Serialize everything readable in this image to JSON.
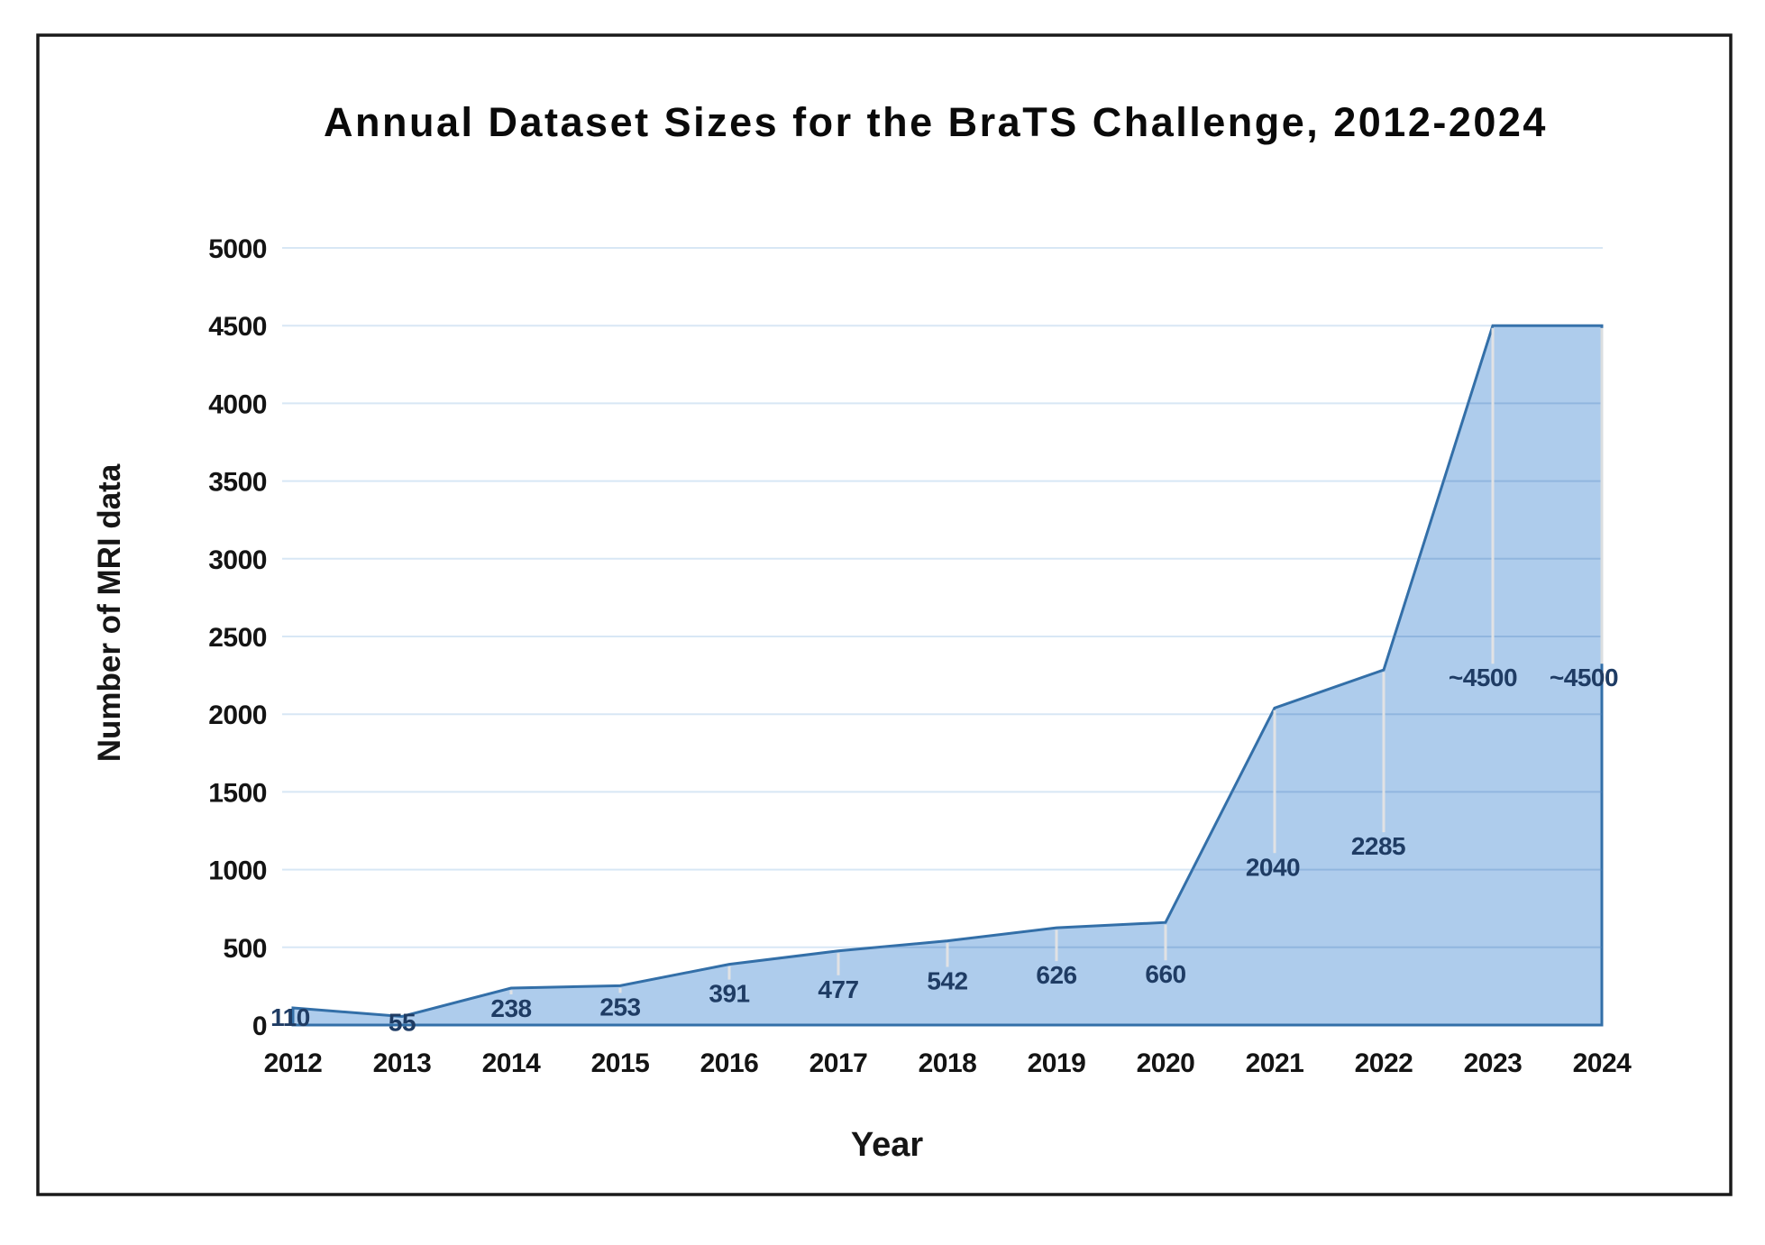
{
  "figure": {
    "background": "#ffffff",
    "frame_border_color": "#1a1a1a"
  },
  "chart_data": {
    "type": "area",
    "title": "Annual Dataset Sizes for the BraTS Challenge, 2012-2024",
    "xlabel": "Year",
    "ylabel": "Number of MRI data",
    "categories": [
      "2012",
      "2013",
      "2014",
      "2015",
      "2016",
      "2017",
      "2018",
      "2019",
      "2020",
      "2021",
      "2022",
      "2023",
      "2024"
    ],
    "series": [
      {
        "name": "Number of MRI data",
        "values": [
          110,
          55,
          238,
          253,
          391,
          477,
          542,
          626,
          660,
          2040,
          2285,
          4500,
          4500
        ],
        "data_labels": [
          "110",
          "55",
          "238",
          "253",
          "391",
          "477",
          "542",
          "626",
          "660",
          "2040",
          "2285",
          "~4500",
          "~4500"
        ]
      }
    ],
    "ylim": [
      0,
      5000
    ],
    "ytick_step": 500,
    "grid": "horizontal",
    "legend": "none",
    "colors": {
      "area_fill": "#A3C5E9",
      "area_stroke": "#336FA8",
      "gridline": "#D8E7F5",
      "gridline_over_area": "rgba(90,140,195,0.30)",
      "data_label": "#1F3C64",
      "leader_line": "#E4E4E4",
      "tick_text": "#141414",
      "title_text": "#0a0a0a"
    }
  }
}
